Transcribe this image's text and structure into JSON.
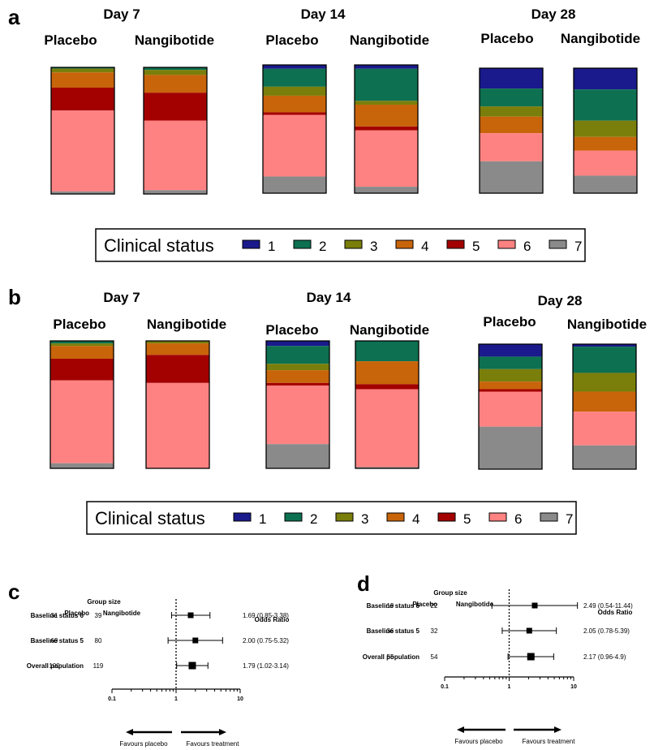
{
  "colors": {
    "1": "#1a1a8c",
    "2": "#0d7050",
    "3": "#7a7e0a",
    "4": "#c8640a",
    "5": "#a30000",
    "6": "#ff8282",
    "7": "#8a8a8a"
  },
  "chart_data": [
    {
      "panel": "a",
      "type": "bar",
      "stacked": true,
      "legend": {
        "title": "Clinical status",
        "items": [
          "1",
          "2",
          "3",
          "4",
          "5",
          "6",
          "7"
        ]
      },
      "days": [
        {
          "label": "Day 7",
          "bars": [
            {
              "group": "Placebo",
              "segments": [
                0.0,
                0.01,
                0.03,
                0.12,
                0.18,
                0.64,
                0.02
              ]
            },
            {
              "group": "Nangibotide",
              "segments": [
                0.0,
                0.02,
                0.04,
                0.14,
                0.22,
                0.55,
                0.03
              ]
            }
          ]
        },
        {
          "label": "Day 14",
          "bars": [
            {
              "group": "Placebo",
              "segments": [
                0.03,
                0.14,
                0.07,
                0.13,
                0.02,
                0.48,
                0.13
              ]
            },
            {
              "group": "Nangibotide",
              "segments": [
                0.03,
                0.25,
                0.03,
                0.17,
                0.03,
                0.44,
                0.05
              ]
            }
          ]
        },
        {
          "label": "Day 28",
          "bars": [
            {
              "group": "Placebo",
              "segments": [
                0.16,
                0.14,
                0.08,
                0.13,
                0.0,
                0.22,
                0.25
              ]
            },
            {
              "group": "Nangibotide",
              "segments": [
                0.17,
                0.25,
                0.13,
                0.11,
                0.0,
                0.2,
                0.14
              ]
            }
          ]
        }
      ]
    },
    {
      "panel": "b",
      "type": "bar",
      "stacked": true,
      "legend": {
        "title": "Clinical status",
        "items": [
          "1",
          "2",
          "3",
          "4",
          "5",
          "6",
          "7"
        ]
      },
      "days": [
        {
          "label": "Day 7",
          "bars": [
            {
              "group": "Placebo",
              "segments": [
                0.0,
                0.02,
                0.02,
                0.1,
                0.17,
                0.65,
                0.04
              ]
            },
            {
              "group": "Nangibotide",
              "segments": [
                0.0,
                0.0,
                0.02,
                0.09,
                0.22,
                0.67,
                0.0
              ]
            }
          ]
        },
        {
          "label": "Day 14",
          "bars": [
            {
              "group": "Placebo",
              "segments": [
                0.04,
                0.14,
                0.05,
                0.1,
                0.02,
                0.46,
                0.19
              ]
            },
            {
              "group": "Nangibotide",
              "segments": [
                0.0,
                0.16,
                0.0,
                0.18,
                0.04,
                0.61,
                0.01
              ]
            }
          ]
        },
        {
          "label": "Day 28",
          "bars": [
            {
              "group": "Placebo",
              "segments": [
                0.1,
                0.1,
                0.1,
                0.06,
                0.02,
                0.28,
                0.34
              ]
            },
            {
              "group": "Nangibotide",
              "segments": [
                0.02,
                0.21,
                0.15,
                0.16,
                0.0,
                0.27,
                0.19
              ]
            }
          ]
        }
      ]
    },
    {
      "panel": "c",
      "type": "scatter",
      "subtype": "forest",
      "xscale": "log",
      "xlim": [
        0.1,
        10
      ],
      "xticks": [
        "0.1",
        "1",
        "10"
      ],
      "header_group": "Group size",
      "header_placebo": "Placebo",
      "header_treat": "Nangibotide",
      "header_or": "Odds Ratio",
      "favours_left": "Favours placebo",
      "favours_right": "Favours treatment",
      "rows": [
        {
          "label": "Baseline status 6",
          "placebo": "31",
          "treatment": "39",
          "or": 1.69,
          "lo": 0.85,
          "hi": 3.38,
          "text": "1.69 (0.85-3.38)"
        },
        {
          "label": "Baseline status 5",
          "placebo": "69",
          "treatment": "80",
          "or": 2.0,
          "lo": 0.75,
          "hi": 5.32,
          "text": "2.00 (0.75-5.32)"
        },
        {
          "label": "Overall population",
          "placebo": "100",
          "treatment": "119",
          "or": 1.79,
          "lo": 1.02,
          "hi": 3.14,
          "text": "1.79 (1.02-3.14)"
        }
      ]
    },
    {
      "panel": "d",
      "type": "scatter",
      "subtype": "forest",
      "xscale": "log",
      "xlim": [
        0.1,
        10
      ],
      "xticks": [
        "0.1",
        "1",
        "10"
      ],
      "header_group": "Group size",
      "header_placebo": "Placebo",
      "header_treat": "Nangibotide",
      "header_or": "Odds Ratio",
      "favours_left": "Favours placebo",
      "favours_right": "Favours treatment",
      "rows": [
        {
          "label": "Baseline status 6",
          "placebo": "19",
          "treatment": "22",
          "or": 2.49,
          "lo": 0.54,
          "hi": 11.44,
          "text": "2.49 (0.54-11.44)"
        },
        {
          "label": "Baseline status 5",
          "placebo": "36",
          "treatment": "32",
          "or": 2.05,
          "lo": 0.78,
          "hi": 5.39,
          "text": "2.05 (0.78-5.39)"
        },
        {
          "label": "Overall population",
          "placebo": "55",
          "treatment": "54",
          "or": 2.17,
          "lo": 0.96,
          "hi": 4.9,
          "text": "2.17 (0.96-4.9)"
        }
      ]
    }
  ]
}
